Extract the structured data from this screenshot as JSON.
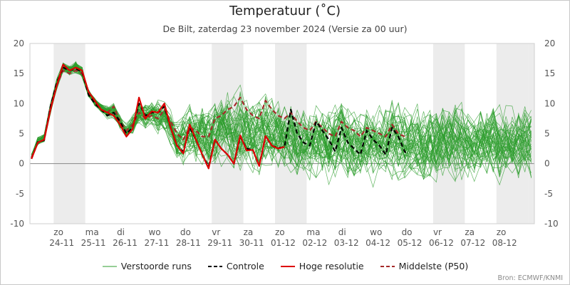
{
  "chart_data": {
    "type": "line",
    "title": "Temperatuur (˚C)",
    "subtitle": "De Bilt, zaterdag 23 november 2024 (Versie za 00 uur)",
    "ylim": [
      -10,
      20
    ],
    "yticks": [
      -10,
      -5,
      0,
      5,
      10,
      15,
      20
    ],
    "xlim": [
      -0.75,
      15.2
    ],
    "grid": true,
    "weekend_shading": [
      [
        0,
        1
      ],
      [
        5,
        6
      ],
      [
        7,
        8
      ],
      [
        12,
        13
      ],
      [
        14,
        15
      ],
      [
        15,
        15.2
      ]
    ],
    "x_ticks": [
      {
        "x": 0,
        "day": "zo",
        "date": "24-11"
      },
      {
        "x": 1,
        "day": "ma",
        "date": "25-11"
      },
      {
        "x": 2,
        "day": "di",
        "date": "26-11"
      },
      {
        "x": 3,
        "day": "wo",
        "date": "27-11"
      },
      {
        "x": 4,
        "day": "do",
        "date": "28-11"
      },
      {
        "x": 5,
        "day": "vr",
        "date": "29-11"
      },
      {
        "x": 6,
        "day": "za",
        "date": "30-11"
      },
      {
        "x": 7,
        "day": "zo",
        "date": "01-12"
      },
      {
        "x": 8,
        "day": "ma",
        "date": "02-12"
      },
      {
        "x": 9,
        "day": "di",
        "date": "03-12"
      },
      {
        "x": 10,
        "day": "wo",
        "date": "04-12"
      },
      {
        "x": 11,
        "day": "do",
        "date": "05-12"
      },
      {
        "x": 12,
        "day": "vr",
        "date": "06-12"
      },
      {
        "x": 13,
        "day": "za",
        "date": "07-12"
      },
      {
        "x": 14,
        "day": "zo",
        "date": "08-12"
      }
    ],
    "series": [
      {
        "name": "Hoge resolutie",
        "color": "#dd0000",
        "style": "solid",
        "points": [
          [
            -0.7,
            0.8
          ],
          [
            -0.5,
            3.5
          ],
          [
            -0.3,
            4.0
          ],
          [
            -0.1,
            9.0
          ],
          [
            0.1,
            13.0
          ],
          [
            0.3,
            16.5
          ],
          [
            0.5,
            15.5
          ],
          [
            0.7,
            16.0
          ],
          [
            0.9,
            15.5
          ],
          [
            1.1,
            12.0
          ],
          [
            1.3,
            10.5
          ],
          [
            1.5,
            9.0
          ],
          [
            1.7,
            8.5
          ],
          [
            1.9,
            8.0
          ],
          [
            2.1,
            6.5
          ],
          [
            2.3,
            4.5
          ],
          [
            2.5,
            5.8
          ],
          [
            2.7,
            11.0
          ],
          [
            2.9,
            7.5
          ],
          [
            3.1,
            8.7
          ],
          [
            3.3,
            8.5
          ],
          [
            3.5,
            10.0
          ],
          [
            3.7,
            6.0
          ],
          [
            3.9,
            3.0
          ],
          [
            4.1,
            1.7
          ],
          [
            4.3,
            6.5
          ],
          [
            4.5,
            4.0
          ],
          [
            4.7,
            1.5
          ],
          [
            4.9,
            -0.8
          ],
          [
            5.1,
            4.0
          ],
          [
            5.3,
            2.5
          ],
          [
            5.5,
            1.5
          ],
          [
            5.7,
            0.0
          ],
          [
            5.9,
            4.7
          ],
          [
            6.1,
            2.2
          ],
          [
            6.3,
            2.3
          ],
          [
            6.5,
            -0.4
          ],
          [
            6.7,
            4.6
          ],
          [
            6.9,
            3.0
          ],
          [
            7.1,
            2.5
          ],
          [
            7.3,
            2.8
          ]
        ]
      },
      {
        "name": "Controle",
        "color": "#000000",
        "style": "dashed",
        "points": [
          [
            -0.7,
            0.8
          ],
          [
            -0.5,
            3.6
          ],
          [
            -0.3,
            3.9
          ],
          [
            -0.1,
            9.5
          ],
          [
            0.1,
            13.5
          ],
          [
            0.3,
            16.0
          ],
          [
            0.5,
            15.5
          ],
          [
            0.7,
            15.8
          ],
          [
            0.9,
            15.3
          ],
          [
            1.1,
            11.5
          ],
          [
            1.3,
            10.0
          ],
          [
            1.5,
            9.0
          ],
          [
            1.7,
            8.0
          ],
          [
            1.9,
            8.5
          ],
          [
            2.1,
            7.0
          ],
          [
            2.3,
            5.0
          ],
          [
            2.5,
            6.0
          ],
          [
            2.7,
            10.0
          ],
          [
            2.9,
            8.0
          ],
          [
            3.1,
            8.5
          ],
          [
            3.3,
            8.5
          ],
          [
            3.5,
            9.5
          ],
          [
            3.7,
            6.0
          ],
          [
            3.9,
            3.0
          ],
          [
            4.1,
            2.0
          ],
          [
            4.3,
            6.0
          ],
          [
            4.5,
            4.0
          ],
          [
            4.7,
            1.5
          ],
          [
            4.9,
            -0.5
          ],
          [
            5.1,
            4.0
          ],
          [
            5.3,
            2.5
          ],
          [
            5.5,
            1.5
          ],
          [
            5.7,
            0.0
          ],
          [
            5.9,
            4.5
          ],
          [
            6.1,
            2.5
          ],
          [
            6.3,
            2.3
          ],
          [
            6.5,
            -0.3
          ],
          [
            6.7,
            4.5
          ],
          [
            6.9,
            3.0
          ],
          [
            7.1,
            2.6
          ],
          [
            7.3,
            2.8
          ],
          [
            7.5,
            9.0
          ],
          [
            7.7,
            5.0
          ],
          [
            7.9,
            3.5
          ],
          [
            8.1,
            3.0
          ],
          [
            8.3,
            7.0
          ],
          [
            8.5,
            5.5
          ],
          [
            8.7,
            4.0
          ],
          [
            8.9,
            2.0
          ],
          [
            9.1,
            6.0
          ],
          [
            9.3,
            3.5
          ],
          [
            9.5,
            2.5
          ],
          [
            9.7,
            1.5
          ],
          [
            9.9,
            5.5
          ],
          [
            10.1,
            4.0
          ],
          [
            10.3,
            3.0
          ],
          [
            10.5,
            1.5
          ],
          [
            10.7,
            6.0
          ],
          [
            10.9,
            4.5
          ],
          [
            11.1,
            2.0
          ],
          [
            11.2,
            1.5
          ]
        ]
      },
      {
        "name": "Middelste (P50)",
        "color": "#a52a2a",
        "style": "dashed",
        "points": [
          [
            -0.7,
            1.0
          ],
          [
            -0.5,
            3.5
          ],
          [
            -0.3,
            4.0
          ],
          [
            -0.1,
            9.5
          ],
          [
            0.1,
            13.0
          ],
          [
            0.3,
            15.5
          ],
          [
            0.5,
            15.0
          ],
          [
            0.7,
            15.5
          ],
          [
            0.9,
            15.0
          ],
          [
            1.1,
            12.0
          ],
          [
            1.3,
            10.0
          ],
          [
            1.5,
            9.0
          ],
          [
            1.7,
            8.5
          ],
          [
            1.9,
            9.5
          ],
          [
            2.1,
            7.0
          ],
          [
            2.3,
            5.5
          ],
          [
            2.5,
            6.5
          ],
          [
            2.7,
            8.5
          ],
          [
            2.9,
            7.5
          ],
          [
            3.1,
            8.0
          ],
          [
            3.3,
            7.5
          ],
          [
            3.5,
            9.0
          ],
          [
            3.7,
            7.0
          ],
          [
            3.9,
            5.0
          ],
          [
            4.1,
            4.0
          ],
          [
            4.3,
            6.0
          ],
          [
            4.5,
            5.5
          ],
          [
            4.7,
            4.5
          ],
          [
            4.9,
            4.5
          ],
          [
            5.1,
            7.5
          ],
          [
            5.3,
            8.0
          ],
          [
            5.5,
            9.0
          ],
          [
            5.7,
            9.5
          ],
          [
            5.9,
            11.0
          ],
          [
            6.1,
            9.0
          ],
          [
            6.3,
            8.0
          ],
          [
            6.5,
            7.5
          ],
          [
            6.7,
            10.5
          ],
          [
            6.9,
            9.0
          ],
          [
            7.1,
            8.0
          ],
          [
            7.3,
            7.5
          ],
          [
            7.5,
            8.5
          ],
          [
            7.7,
            7.0
          ],
          [
            7.9,
            6.0
          ],
          [
            8.1,
            5.5
          ],
          [
            8.3,
            7.0
          ],
          [
            8.5,
            6.0
          ],
          [
            8.7,
            5.0
          ],
          [
            8.9,
            4.5
          ],
          [
            9.1,
            7.0
          ],
          [
            9.3,
            6.0
          ],
          [
            9.5,
            5.5
          ],
          [
            9.7,
            4.5
          ],
          [
            9.9,
            6.0
          ],
          [
            10.1,
            5.5
          ],
          [
            10.3,
            5.0
          ],
          [
            10.5,
            4.5
          ],
          [
            10.7,
            6.5
          ],
          [
            10.9,
            5.0
          ],
          [
            11.1,
            4.5
          ],
          [
            11.2,
            4.5
          ]
        ]
      }
    ],
    "ensemble": {
      "name": "Verstoorde runs",
      "color": "#2e9e2e",
      "spread": [
        [
          -0.7,
          0.5,
          2.0
        ],
        [
          -0.5,
          2.5,
          5.0
        ],
        [
          -0.3,
          3.0,
          5.5
        ],
        [
          -0.1,
          7.5,
          11.0
        ],
        [
          0.1,
          11.5,
          15.0
        ],
        [
          0.3,
          14.5,
          17.5
        ],
        [
          0.5,
          14.0,
          17.0
        ],
        [
          0.7,
          14.0,
          18.0
        ],
        [
          0.9,
          13.5,
          17.0
        ],
        [
          1.1,
          10.5,
          13.0
        ],
        [
          1.3,
          9.0,
          11.5
        ],
        [
          1.5,
          8.0,
          10.5
        ],
        [
          1.7,
          7.0,
          10.0
        ],
        [
          1.9,
          7.0,
          10.5
        ],
        [
          2.1,
          5.0,
          8.5
        ],
        [
          2.3,
          3.5,
          7.0
        ],
        [
          2.5,
          4.0,
          9.0
        ],
        [
          2.7,
          5.0,
          11.5
        ],
        [
          2.9,
          4.5,
          11.0
        ],
        [
          3.1,
          5.0,
          12.0
        ],
        [
          3.3,
          4.0,
          12.0
        ],
        [
          3.5,
          3.5,
          11.5
        ],
        [
          3.7,
          1.5,
          10.0
        ],
        [
          3.9,
          -1.0,
          9.0
        ],
        [
          4.1,
          -2.5,
          10.5
        ],
        [
          4.3,
          -1.0,
          12.0
        ],
        [
          4.5,
          -2.0,
          11.5
        ],
        [
          4.7,
          -3.0,
          12.5
        ],
        [
          4.9,
          -4.0,
          13.5
        ],
        [
          5.1,
          -3.0,
          13.5
        ],
        [
          5.3,
          -2.5,
          14.0
        ],
        [
          5.5,
          -3.5,
          15.0
        ],
        [
          5.7,
          -4.5,
          14.5
        ],
        [
          5.9,
          -4.0,
          16.0
        ],
        [
          6.1,
          -3.5,
          15.0
        ],
        [
          6.3,
          -4.5,
          14.0
        ],
        [
          6.5,
          -5.0,
          14.5
        ],
        [
          6.7,
          -3.0,
          15.0
        ],
        [
          6.9,
          -4.0,
          14.0
        ],
        [
          7.1,
          -4.5,
          13.5
        ],
        [
          7.3,
          -5.0,
          13.0
        ],
        [
          7.5,
          -4.5,
          14.0
        ],
        [
          7.7,
          -5.5,
          12.5
        ],
        [
          7.9,
          -5.0,
          12.0
        ],
        [
          8.1,
          -5.5,
          12.0
        ],
        [
          8.3,
          -5.0,
          13.0
        ],
        [
          8.5,
          -5.5,
          12.5
        ],
        [
          8.7,
          -6.0,
          12.0
        ],
        [
          8.9,
          -5.5,
          12.5
        ],
        [
          9.1,
          -5.0,
          13.5
        ],
        [
          9.3,
          -5.5,
          12.5
        ],
        [
          9.5,
          -6.0,
          11.5
        ],
        [
          9.7,
          -6.0,
          12.0
        ],
        [
          9.9,
          -5.5,
          13.0
        ],
        [
          10.1,
          -6.0,
          12.5
        ],
        [
          10.3,
          -6.0,
          12.0
        ],
        [
          10.5,
          -5.5,
          12.5
        ],
        [
          10.7,
          -5.0,
          14.0
        ],
        [
          10.9,
          -5.5,
          13.0
        ],
        [
          11.1,
          -5.5,
          12.5
        ],
        [
          11.3,
          -6.0,
          12.0
        ],
        [
          11.5,
          -5.5,
          13.0
        ],
        [
          11.7,
          -6.0,
          12.5
        ],
        [
          11.9,
          -5.5,
          12.0
        ],
        [
          12.1,
          -6.0,
          12.5
        ],
        [
          12.3,
          -5.5,
          13.0
        ],
        [
          12.5,
          -5.0,
          12.5
        ],
        [
          12.7,
          -5.5,
          13.5
        ],
        [
          12.9,
          -6.0,
          13.0
        ],
        [
          13.1,
          -5.5,
          12.5
        ],
        [
          13.3,
          -5.0,
          12.0
        ],
        [
          13.5,
          -5.5,
          13.0
        ],
        [
          13.7,
          -5.0,
          12.5
        ],
        [
          13.9,
          -5.5,
          13.5
        ],
        [
          14.1,
          -6.0,
          12.0
        ],
        [
          14.3,
          -5.5,
          12.5
        ],
        [
          14.5,
          -5.0,
          12.0
        ],
        [
          14.7,
          -5.5,
          13.0
        ],
        [
          14.9,
          -5.0,
          12.5
        ],
        [
          15.1,
          -5.5,
          12.0
        ]
      ]
    }
  },
  "legend": {
    "ensemble_label": "Verstoorde runs",
    "control_label": "Controle",
    "hires_label": "Hoge resolutie",
    "median_label": "Middelste (P50)"
  },
  "source": "Bron: ECMWF/KNMI"
}
